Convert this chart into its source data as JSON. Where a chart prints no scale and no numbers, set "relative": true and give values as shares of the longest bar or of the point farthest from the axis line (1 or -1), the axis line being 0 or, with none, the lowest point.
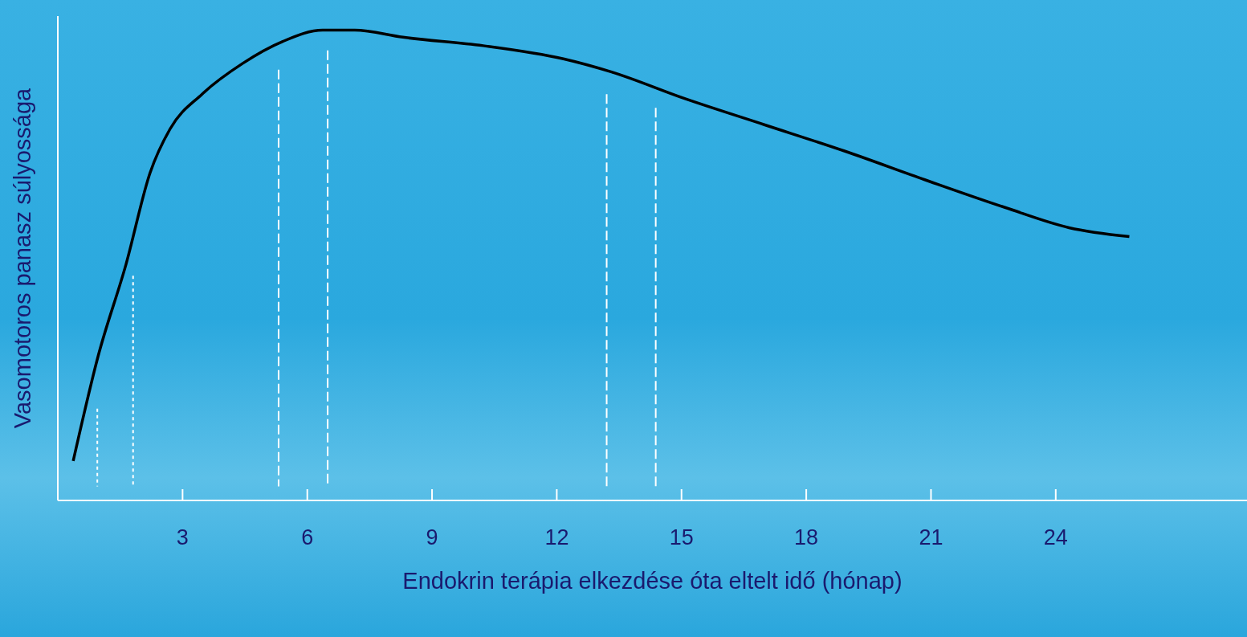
{
  "chart_data": {
    "type": "line",
    "xlabel": "Endokrin terápia elkezdése óta eltelt idő (hónap)",
    "ylabel": "Vasomotoros panasz súlyossága",
    "relative": true,
    "xlim": [
      0,
      28.6
    ],
    "xticks": [
      3,
      6,
      9,
      12,
      15,
      18,
      21,
      24
    ],
    "tick_labels": "x",
    "grid": false,
    "legend": false,
    "marker": "none",
    "series": [
      {
        "color": "#000000",
        "line_style": "solid",
        "x": [
          0.37,
          0.97,
          1.64,
          2.22,
          2.7,
          3.47,
          4.44,
          5.41,
          6.37,
          7.14,
          8.3,
          10.23,
          12.16,
          13.32,
          15.06,
          16.99,
          18.92,
          20.85,
          22.78,
          24.32,
          25.77
        ],
        "values": [
          0.084,
          0.307,
          0.502,
          0.697,
          0.79,
          0.864,
          0.929,
          0.976,
          1.0,
          1.0,
          0.985,
          0.967,
          0.939,
          0.911,
          0.855,
          0.799,
          0.743,
          0.682,
          0.623,
          0.58,
          0.561
        ]
      },
      {
        "color": "#ffffff",
        "line_style": "dotted",
        "x": [
          0.95,
          0.95
        ],
        "values": [
          0.195,
          0.03
        ]
      },
      {
        "color": "#ffffff",
        "line_style": "dotted",
        "x": [
          1.81,
          1.81
        ],
        "values": [
          0.478,
          0.03
        ]
      },
      {
        "color": "#ffffff",
        "line_style": "dashed",
        "x": [
          5.31,
          5.31
        ],
        "values": [
          0.916,
          0.03
        ]
      },
      {
        "color": "#ffffff",
        "line_style": "dashed",
        "x": [
          6.49,
          6.49
        ],
        "values": [
          0.957,
          0.03
        ]
      },
      {
        "color": "#ffffff",
        "line_style": "dashed",
        "x": [
          13.2,
          13.2
        ],
        "values": [
          0.864,
          0.03
        ]
      },
      {
        "color": "#ffffff",
        "line_style": "dashed",
        "x": [
          14.38,
          14.38
        ],
        "values": [
          0.835,
          0.03
        ]
      }
    ]
  }
}
